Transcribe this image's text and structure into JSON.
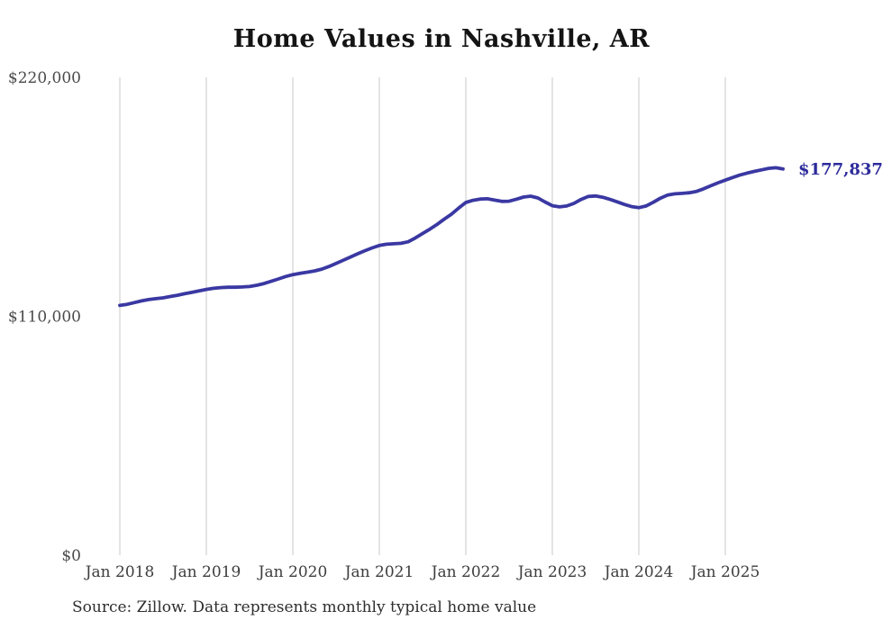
{
  "source_note": "Source: Zillow. Data represents monthly typical home value",
  "colors": {
    "line": "#3a38a2",
    "end_label": "#2d2b9b",
    "grid": "#c9c9c9",
    "title_text": "#141414",
    "axis_text": "#4a4a4a",
    "source_text": "#2e2e2e",
    "background": "#ffffff"
  },
  "chart_data": {
    "type": "line",
    "title": "Home Values in Nashville, AR",
    "x_start": "2018-01",
    "x_end": "2025-09",
    "frequency": "monthly",
    "x_tick_labels": [
      "Jan 2018",
      "Jan 2019",
      "Jan 2020",
      "Jan 2021",
      "Jan 2022",
      "Jan 2023",
      "Jan 2024",
      "Jan 2025"
    ],
    "y_ticks": [
      {
        "label": "$0",
        "value": 0
      },
      {
        "label": "$110,000",
        "value": 110000
      },
      {
        "label": "$220,000",
        "value": 220000
      }
    ],
    "ylim": [
      0,
      220000
    ],
    "grid": "vertical",
    "legend": "none",
    "end_label": "$177,837",
    "final_value": 177837,
    "series": [
      {
        "name": "Typical home value",
        "values": [
          115000,
          115500,
          116300,
          117100,
          117700,
          118100,
          118500,
          119100,
          119700,
          120400,
          121000,
          121700,
          122400,
          122900,
          123200,
          123400,
          123400,
          123500,
          123700,
          124300,
          125100,
          126100,
          127200,
          128300,
          129200,
          129800,
          130300,
          130900,
          131700,
          132900,
          134300,
          135800,
          137300,
          138800,
          140200,
          141500,
          142600,
          143200,
          143400,
          143600,
          144300,
          146100,
          148100,
          150100,
          152300,
          154700,
          157000,
          159800,
          162400,
          163400,
          164000,
          164100,
          163500,
          162900,
          163000,
          163900,
          164900,
          165300,
          164500,
          162600,
          160900,
          160400,
          160800,
          162000,
          163800,
          165200,
          165400,
          164800,
          163800,
          162700,
          161500,
          160500,
          160000,
          160800,
          162500,
          164400,
          165800,
          166400,
          166600,
          166900,
          167500,
          168700,
          170100,
          171500,
          172700,
          173900,
          175000,
          175900,
          176700,
          177400,
          178100,
          178400,
          177837
        ]
      }
    ]
  }
}
